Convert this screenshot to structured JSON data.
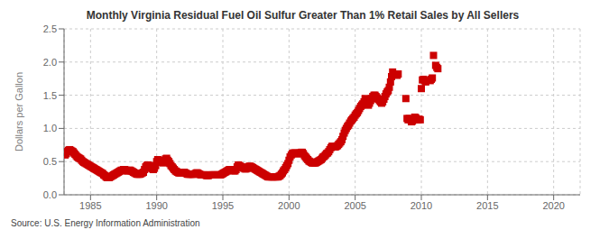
{
  "chart_data": {
    "type": "scatter",
    "title": "Monthly Virginia Residual Fuel Oil Sulfur Greater Than 1% Retail Sales by All Sellers",
    "y_label": "Dollars per Gallon",
    "annotation": "Source: U.S. Energy Information Administration",
    "color": "#cc0000",
    "marker": "square",
    "grid": true,
    "xlim": [
      1983,
      2022
    ],
    "ylim": [
      0.0,
      2.5
    ],
    "xticks": [
      1985,
      1990,
      1995,
      2000,
      2005,
      2010,
      2015,
      2020
    ],
    "yticks": [
      {
        "value": 0.0,
        "label": "0.0"
      },
      0.5,
      {
        "value": 1.0,
        "label": "1.0"
      },
      1.5,
      {
        "value": 2.0,
        "label": "2.0"
      },
      2.5
    ],
    "x": [
      1983.08,
      1983.17,
      1983.25,
      1983.33,
      1983.42,
      1983.5,
      1983.58,
      1983.67,
      1983.75,
      1983.83,
      1983.92,
      1984.0,
      1984.08,
      1984.17,
      1984.25,
      1984.33,
      1984.42,
      1984.5,
      1984.58,
      1984.67,
      1984.75,
      1984.83,
      1984.92,
      1985.0,
      1985.08,
      1985.17,
      1985.25,
      1985.33,
      1985.42,
      1985.5,
      1985.58,
      1985.67,
      1985.75,
      1985.83,
      1985.92,
      1986.0,
      1986.08,
      1986.17,
      1986.25,
      1986.33,
      1986.42,
      1986.5,
      1986.58,
      1986.67,
      1986.75,
      1986.83,
      1986.92,
      1987.0,
      1987.08,
      1987.17,
      1987.25,
      1987.33,
      1987.42,
      1987.5,
      1987.58,
      1987.67,
      1987.75,
      1987.83,
      1987.92,
      1988.0,
      1988.08,
      1988.17,
      1988.25,
      1988.33,
      1988.42,
      1988.5,
      1988.58,
      1988.67,
      1988.75,
      1988.83,
      1988.92,
      1989.0,
      1989.08,
      1989.17,
      1989.25,
      1989.33,
      1989.42,
      1989.5,
      1989.58,
      1989.67,
      1989.75,
      1989.83,
      1989.92,
      1990.0,
      1990.08,
      1990.17,
      1990.25,
      1990.33,
      1990.42,
      1990.5,
      1990.58,
      1990.67,
      1990.75,
      1990.83,
      1990.92,
      1991.0,
      1991.08,
      1991.17,
      1991.25,
      1991.33,
      1991.42,
      1991.5,
      1991.58,
      1991.67,
      1991.75,
      1991.83,
      1991.92,
      1992.0,
      1992.08,
      1992.17,
      1992.25,
      1992.33,
      1992.42,
      1992.5,
      1992.58,
      1992.67,
      1992.75,
      1992.83,
      1992.92,
      1993.0,
      1993.08,
      1993.17,
      1993.25,
      1993.33,
      1993.42,
      1993.5,
      1993.58,
      1993.67,
      1993.75,
      1993.83,
      1993.92,
      1994.0,
      1994.08,
      1994.17,
      1994.25,
      1994.33,
      1994.42,
      1994.5,
      1994.58,
      1994.67,
      1994.75,
      1994.83,
      1994.92,
      1995.0,
      1995.08,
      1995.17,
      1995.25,
      1995.33,
      1995.42,
      1995.5,
      1995.58,
      1995.67,
      1995.75,
      1995.83,
      1995.92,
      1996.0,
      1996.08,
      1996.17,
      1996.25,
      1996.33,
      1996.42,
      1996.5,
      1996.58,
      1996.67,
      1996.75,
      1996.83,
      1996.92,
      1997.0,
      1997.08,
      1997.17,
      1997.25,
      1997.33,
      1997.42,
      1997.5,
      1997.58,
      1997.67,
      1997.75,
      1997.83,
      1997.92,
      1998.0,
      1998.08,
      1998.17,
      1998.25,
      1998.33,
      1998.42,
      1998.5,
      1998.58,
      1998.67,
      1998.75,
      1998.83,
      1998.92,
      1999.0,
      1999.08,
      1999.17,
      1999.25,
      1999.33,
      1999.42,
      1999.5,
      1999.58,
      1999.67,
      1999.75,
      1999.83,
      1999.92,
      2000.0,
      2000.08,
      2000.17,
      2000.25,
      2000.33,
      2000.42,
      2000.5,
      2000.58,
      2000.67,
      2000.75,
      2000.83,
      2000.92,
      2001.0,
      2001.08,
      2001.17,
      2001.25,
      2001.33,
      2001.42,
      2001.5,
      2001.58,
      2001.67,
      2001.75,
      2001.83,
      2001.92,
      2002.0,
      2002.08,
      2002.17,
      2002.25,
      2002.33,
      2002.42,
      2002.5,
      2002.58,
      2002.67,
      2002.75,
      2002.83,
      2002.92,
      2003.0,
      2003.08,
      2003.17,
      2003.25,
      2003.33,
      2003.42,
      2003.5,
      2003.58,
      2003.67,
      2003.75,
      2003.83,
      2003.92,
      2004.0,
      2004.08,
      2004.17,
      2004.25,
      2004.33,
      2004.42,
      2004.5,
      2004.58,
      2004.67,
      2004.75,
      2004.83,
      2004.92,
      2005.0,
      2005.08,
      2005.17,
      2005.25,
      2005.33,
      2005.42,
      2005.5,
      2005.58,
      2005.67,
      2005.75,
      2005.83,
      2005.92,
      2006.0,
      2006.08,
      2006.17,
      2006.25,
      2006.33,
      2006.42,
      2006.5,
      2006.58,
      2006.67,
      2006.75,
      2006.83,
      2006.92,
      2007.0,
      2007.08,
      2007.17,
      2007.25,
      2007.33,
      2007.42,
      2007.5,
      2007.58,
      2007.67,
      2007.75,
      2007.83,
      2008.17,
      2008.25,
      2008.83,
      2008.92,
      2009.0,
      2009.08,
      2009.17,
      2009.25,
      2009.33,
      2009.42,
      2009.5,
      2009.58,
      2009.67,
      2009.75,
      2009.83,
      2009.92,
      2010.0,
      2010.08,
      2010.17,
      2010.25,
      2010.33,
      2010.67,
      2010.75,
      2010.83,
      2010.92,
      2011.08,
      2011.17,
      2011.25
    ],
    "values": [
      0.6,
      0.62,
      0.65,
      0.67,
      0.68,
      0.67,
      0.66,
      0.65,
      0.63,
      0.61,
      0.59,
      0.57,
      0.56,
      0.55,
      0.54,
      0.52,
      0.5,
      0.49,
      0.48,
      0.47,
      0.46,
      0.45,
      0.44,
      0.43,
      0.42,
      0.41,
      0.4,
      0.39,
      0.38,
      0.37,
      0.36,
      0.35,
      0.34,
      0.33,
      0.32,
      0.3,
      0.29,
      0.27,
      0.26,
      0.26,
      0.26,
      0.27,
      0.28,
      0.29,
      0.3,
      0.31,
      0.32,
      0.33,
      0.34,
      0.35,
      0.36,
      0.37,
      0.37,
      0.38,
      0.38,
      0.37,
      0.36,
      0.36,
      0.37,
      0.37,
      0.36,
      0.35,
      0.34,
      0.33,
      0.32,
      0.31,
      0.31,
      0.31,
      0.31,
      0.32,
      0.33,
      0.34,
      0.38,
      0.42,
      0.44,
      0.45,
      0.44,
      0.42,
      0.4,
      0.39,
      0.38,
      0.4,
      0.44,
      0.5,
      0.53,
      0.52,
      0.51,
      0.5,
      0.49,
      0.48,
      0.5,
      0.54,
      0.55,
      0.52,
      0.5,
      0.47,
      0.44,
      0.42,
      0.4,
      0.38,
      0.36,
      0.35,
      0.34,
      0.33,
      0.33,
      0.33,
      0.34,
      0.34,
      0.34,
      0.33,
      0.32,
      0.31,
      0.31,
      0.31,
      0.31,
      0.31,
      0.31,
      0.31,
      0.32,
      0.33,
      0.33,
      0.32,
      0.31,
      0.3,
      0.3,
      0.3,
      0.3,
      0.3,
      0.29,
      0.29,
      0.29,
      0.3,
      0.3,
      0.3,
      0.3,
      0.3,
      0.3,
      0.3,
      0.3,
      0.3,
      0.3,
      0.3,
      0.31,
      0.32,
      0.33,
      0.34,
      0.35,
      0.36,
      0.37,
      0.38,
      0.38,
      0.38,
      0.37,
      0.36,
      0.36,
      0.38,
      0.42,
      0.45,
      0.44,
      0.43,
      0.42,
      0.41,
      0.4,
      0.39,
      0.39,
      0.4,
      0.42,
      0.43,
      0.43,
      0.42,
      0.41,
      0.4,
      0.39,
      0.38,
      0.37,
      0.36,
      0.35,
      0.34,
      0.33,
      0.32,
      0.31,
      0.3,
      0.29,
      0.28,
      0.27,
      0.27,
      0.27,
      0.27,
      0.27,
      0.27,
      0.27,
      0.27,
      0.27,
      0.27,
      0.28,
      0.29,
      0.31,
      0.33,
      0.36,
      0.38,
      0.41,
      0.44,
      0.47,
      0.52,
      0.57,
      0.6,
      0.62,
      0.63,
      0.63,
      0.63,
      0.62,
      0.62,
      0.62,
      0.63,
      0.64,
      0.64,
      0.62,
      0.59,
      0.57,
      0.55,
      0.53,
      0.51,
      0.5,
      0.49,
      0.48,
      0.48,
      0.48,
      0.48,
      0.49,
      0.5,
      0.51,
      0.52,
      0.53,
      0.55,
      0.57,
      0.58,
      0.6,
      0.62,
      0.63,
      0.65,
      0.68,
      0.71,
      0.73,
      0.73,
      0.72,
      0.72,
      0.73,
      0.74,
      0.76,
      0.78,
      0.8,
      0.83,
      0.88,
      0.93,
      0.97,
      1.0,
      1.03,
      1.05,
      1.08,
      1.11,
      1.13,
      1.15,
      1.17,
      1.2,
      1.22,
      1.24,
      1.27,
      1.3,
      1.33,
      1.35,
      1.37,
      1.4,
      1.45,
      1.42,
      1.38,
      1.35,
      1.38,
      1.42,
      1.45,
      1.48,
      1.5,
      1.5,
      1.48,
      1.46,
      1.44,
      1.42,
      1.4,
      1.38,
      1.4,
      1.44,
      1.48,
      1.52,
      1.55,
      1.57,
      1.62,
      1.7,
      1.78,
      1.85,
      1.8,
      1.82,
      1.45,
      1.15,
      1.13,
      1.15,
      1.13,
      1.1,
      1.11,
      1.14,
      1.17,
      1.16,
      1.14,
      1.13,
      1.14,
      1.13,
      1.6,
      1.73,
      1.74,
      1.72,
      1.7,
      1.72,
      1.74,
      1.76,
      2.1,
      1.95,
      1.92,
      1.9
    ]
  }
}
